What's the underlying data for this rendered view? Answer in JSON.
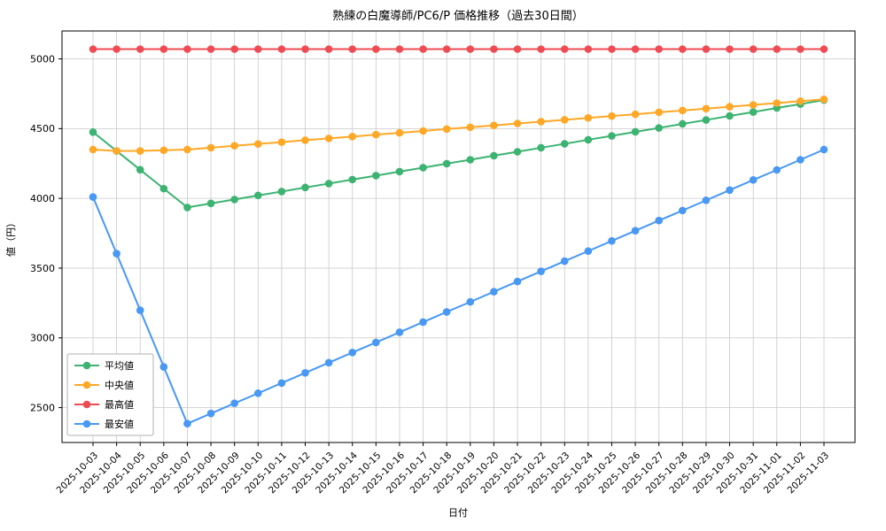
{
  "chart_data": {
    "type": "line",
    "title": "熟練の白魔導師/PC6/P 価格推移（過去30日間）",
    "xlabel": "日付",
    "ylabel": "値（円）",
    "ylim": [
      2250,
      5200
    ],
    "yticks": [
      2500,
      3000,
      3500,
      4000,
      4500,
      5000
    ],
    "grid": true,
    "markers": true,
    "legend_position": "lower left",
    "categories": [
      "2025-10-03",
      "2025-10-04",
      "2025-10-05",
      "2025-10-06",
      "2025-10-07",
      "2025-10-08",
      "2025-10-09",
      "2025-10-10",
      "2025-10-11",
      "2025-10-12",
      "2025-10-13",
      "2025-10-14",
      "2025-10-15",
      "2025-10-16",
      "2025-10-17",
      "2025-10-18",
      "2025-10-19",
      "2025-10-20",
      "2025-10-21",
      "2025-10-22",
      "2025-10-23",
      "2025-10-24",
      "2025-10-25",
      "2025-10-26",
      "2025-10-27",
      "2025-10-28",
      "2025-10-29",
      "2025-10-30",
      "2025-10-31",
      "2025-11-01",
      "2025-11-02",
      "2025-11-03"
    ],
    "series": [
      {
        "id": "average",
        "name": "平均値",
        "color": "#3cb371",
        "values": [
          4475,
          4340,
          4205,
          4070,
          3935,
          3964,
          3992,
          4021,
          4049,
          4078,
          4106,
          4135,
          4163,
          4192,
          4220,
          4249,
          4277,
          4306,
          4334,
          4363,
          4391,
          4420,
          4448,
          4477,
          4505,
          4534,
          4562,
          4591,
          4619,
          4648,
          4676,
          4705
        ]
      },
      {
        "id": "median",
        "name": "中央値",
        "color": "#ffa827",
        "values": [
          4350,
          4340,
          4340,
          4345,
          4350,
          4363,
          4377,
          4390,
          4403,
          4417,
          4430,
          4443,
          4457,
          4470,
          4483,
          4497,
          4510,
          4523,
          4537,
          4550,
          4563,
          4577,
          4590,
          4603,
          4617,
          4630,
          4643,
          4657,
          4670,
          4683,
          4697,
          4710
        ]
      },
      {
        "id": "max",
        "name": "最高値",
        "color": "#ef4b53",
        "values": [
          5070,
          5070,
          5070,
          5070,
          5070,
          5070,
          5070,
          5070,
          5070,
          5070,
          5070,
          5070,
          5070,
          5070,
          5070,
          5070,
          5070,
          5070,
          5070,
          5070,
          5070,
          5070,
          5070,
          5070,
          5070,
          5070,
          5070,
          5070,
          5070,
          5070,
          5070,
          5070
        ]
      },
      {
        "id": "min",
        "name": "最安値",
        "color": "#4898f4",
        "values": [
          4010,
          3604,
          3198,
          2792,
          2385,
          2458,
          2531,
          2603,
          2676,
          2749,
          2822,
          2895,
          2967,
          3040,
          3113,
          3186,
          3258,
          3331,
          3404,
          3477,
          3550,
          3622,
          3695,
          3768,
          3841,
          3913,
          3986,
          4059,
          4132,
          4204,
          4277,
          4350
        ]
      }
    ]
  }
}
